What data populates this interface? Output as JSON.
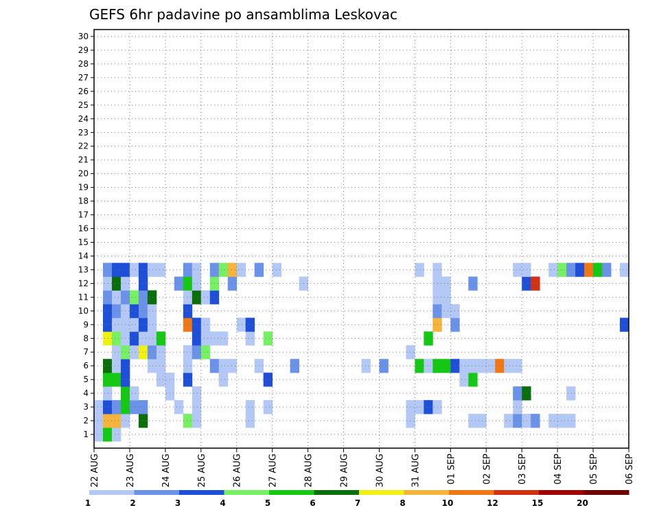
{
  "chart_data": {
    "type": "heatmap",
    "title": "GEFS 6hr padavine po ansamblima Leskovac",
    "ylim": [
      0,
      30
    ],
    "y_ticks": [
      "1",
      "2",
      "3",
      "4",
      "5",
      "6",
      "7",
      "8",
      "9",
      "10",
      "11",
      "12",
      "13",
      "14",
      "15",
      "16",
      "17",
      "18",
      "19",
      "20",
      "21",
      "22",
      "23",
      "24",
      "25",
      "26",
      "27",
      "28",
      "29",
      "30"
    ],
    "x_ticks": [
      "22 AUG",
      "23 AUG",
      "24 AUG",
      "25 AUG",
      "26 AUG",
      "27 AUG",
      "28 AUG",
      "29 AUG",
      "30 AUG",
      "31 AUG",
      "01 SEP",
      "02 SEP",
      "03 SEP",
      "04 SEP",
      "05 SEP",
      "06 SEP"
    ],
    "steps_per_day": 4,
    "n_steps": 60,
    "color_levels": [
      "1",
      "2",
      "3",
      "4",
      "5",
      "6",
      "7",
      "8",
      "10",
      "12",
      "15",
      "20"
    ],
    "color_palette": [
      "#b4c8f5",
      "#6a92e8",
      "#1e4fd8",
      "#78f064",
      "#14c814",
      "#0a6e0a",
      "#f0f014",
      "#f5b43c",
      "#f07814",
      "#d23214",
      "#a00000",
      "#6e0000"
    ],
    "grid": true,
    "cells": [
      [
        1,
        1,
        1
      ],
      [
        1,
        2,
        5
      ],
      [
        1,
        3,
        1
      ],
      [
        2,
        1,
        1
      ],
      [
        2,
        2,
        8
      ],
      [
        2,
        3,
        8
      ],
      [
        2,
        4,
        1
      ],
      [
        2,
        6,
        6
      ],
      [
        2,
        11,
        4
      ],
      [
        2,
        12,
        1
      ],
      [
        2,
        18,
        1
      ],
      [
        2,
        36,
        1
      ],
      [
        2,
        43,
        1
      ],
      [
        2,
        44,
        1
      ],
      [
        2,
        47,
        1
      ],
      [
        2,
        48,
        2
      ],
      [
        2,
        49,
        1
      ],
      [
        2,
        50,
        2
      ],
      [
        2,
        52,
        1
      ],
      [
        2,
        53,
        1
      ],
      [
        2,
        54,
        1
      ],
      [
        3,
        1,
        1
      ],
      [
        3,
        2,
        3
      ],
      [
        3,
        3,
        2
      ],
      [
        3,
        4,
        5
      ],
      [
        3,
        5,
        2
      ],
      [
        3,
        6,
        2
      ],
      [
        3,
        10,
        1
      ],
      [
        3,
        12,
        1
      ],
      [
        3,
        18,
        1
      ],
      [
        3,
        20,
        1
      ],
      [
        3,
        36,
        1
      ],
      [
        3,
        37,
        1
      ],
      [
        3,
        38,
        3
      ],
      [
        3,
        39,
        1
      ],
      [
        3,
        48,
        1
      ],
      [
        4,
        2,
        1
      ],
      [
        4,
        4,
        5
      ],
      [
        4,
        5,
        1
      ],
      [
        4,
        9,
        1
      ],
      [
        4,
        12,
        1
      ],
      [
        4,
        48,
        2
      ],
      [
        4,
        49,
        6
      ],
      [
        4,
        54,
        1
      ],
      [
        5,
        2,
        5
      ],
      [
        5,
        3,
        5
      ],
      [
        5,
        4,
        3
      ],
      [
        5,
        9,
        1
      ],
      [
        5,
        8,
        1
      ],
      [
        5,
        11,
        3
      ],
      [
        5,
        15,
        1
      ],
      [
        5,
        20,
        3
      ],
      [
        5,
        42,
        1
      ],
      [
        5,
        43,
        5
      ],
      [
        6,
        2,
        6
      ],
      [
        6,
        3,
        1
      ],
      [
        6,
        4,
        3
      ],
      [
        6,
        7,
        1
      ],
      [
        6,
        8,
        1
      ],
      [
        6,
        11,
        1
      ],
      [
        6,
        14,
        2
      ],
      [
        6,
        15,
        1
      ],
      [
        6,
        16,
        1
      ],
      [
        6,
        19,
        1
      ],
      [
        6,
        23,
        2
      ],
      [
        6,
        31,
        1
      ],
      [
        6,
        33,
        2
      ],
      [
        6,
        37,
        5
      ],
      [
        6,
        38,
        1
      ],
      [
        6,
        39,
        5
      ],
      [
        6,
        40,
        5
      ],
      [
        6,
        41,
        3
      ],
      [
        6,
        42,
        1
      ],
      [
        6,
        43,
        1
      ],
      [
        6,
        44,
        1
      ],
      [
        6,
        45,
        1
      ],
      [
        6,
        46,
        9
      ],
      [
        6,
        47,
        1
      ],
      [
        6,
        48,
        1
      ],
      [
        7,
        3,
        1
      ],
      [
        7,
        4,
        4
      ],
      [
        7,
        5,
        1
      ],
      [
        7,
        6,
        7
      ],
      [
        7,
        7,
        2
      ],
      [
        7,
        8,
        1
      ],
      [
        7,
        11,
        1
      ],
      [
        7,
        12,
        2
      ],
      [
        7,
        13,
        4
      ],
      [
        7,
        36,
        1
      ],
      [
        8,
        2,
        7
      ],
      [
        8,
        3,
        4
      ],
      [
        8,
        4,
        1
      ],
      [
        8,
        5,
        3
      ],
      [
        8,
        6,
        1
      ],
      [
        8,
        7,
        1
      ],
      [
        8,
        8,
        5
      ],
      [
        8,
        12,
        3
      ],
      [
        8,
        13,
        1
      ],
      [
        8,
        14,
        1
      ],
      [
        8,
        15,
        1
      ],
      [
        8,
        18,
        1
      ],
      [
        8,
        20,
        4
      ],
      [
        8,
        38,
        5
      ],
      [
        9,
        2,
        3
      ],
      [
        9,
        3,
        1
      ],
      [
        9,
        4,
        1
      ],
      [
        9,
        5,
        1
      ],
      [
        9,
        6,
        3
      ],
      [
        9,
        7,
        1
      ],
      [
        9,
        11,
        9
      ],
      [
        9,
        12,
        3
      ],
      [
        9,
        13,
        1
      ],
      [
        9,
        17,
        1
      ],
      [
        9,
        18,
        3
      ],
      [
        9,
        39,
        8
      ],
      [
        9,
        41,
        2
      ],
      [
        9,
        60,
        3
      ],
      [
        10,
        2,
        3
      ],
      [
        10,
        3,
        2
      ],
      [
        10,
        4,
        1
      ],
      [
        10,
        5,
        3
      ],
      [
        10,
        6,
        2
      ],
      [
        10,
        7,
        1
      ],
      [
        10,
        11,
        3
      ],
      [
        10,
        39,
        2
      ],
      [
        10,
        40,
        1
      ],
      [
        10,
        41,
        1
      ],
      [
        11,
        2,
        2
      ],
      [
        11,
        3,
        1
      ],
      [
        11,
        4,
        2
      ],
      [
        11,
        5,
        4
      ],
      [
        11,
        6,
        2
      ],
      [
        11,
        7,
        6
      ],
      [
        11,
        11,
        1
      ],
      [
        11,
        12,
        6
      ],
      [
        11,
        13,
        1
      ],
      [
        11,
        14,
        3
      ],
      [
        11,
        39,
        1
      ],
      [
        11,
        40,
        1
      ],
      [
        12,
        2,
        1
      ],
      [
        12,
        3,
        6
      ],
      [
        12,
        4,
        1
      ],
      [
        12,
        6,
        3
      ],
      [
        12,
        10,
        2
      ],
      [
        12,
        11,
        5
      ],
      [
        12,
        12,
        1
      ],
      [
        12,
        14,
        4
      ],
      [
        12,
        16,
        2
      ],
      [
        12,
        24,
        1
      ],
      [
        12,
        39,
        1
      ],
      [
        12,
        40,
        1
      ],
      [
        12,
        43,
        2
      ],
      [
        12,
        49,
        3
      ],
      [
        12,
        50,
        10
      ],
      [
        13,
        2,
        2
      ],
      [
        13,
        3,
        3
      ],
      [
        13,
        4,
        3
      ],
      [
        13,
        5,
        1
      ],
      [
        13,
        6,
        3
      ],
      [
        13,
        7,
        1
      ],
      [
        13,
        8,
        1
      ],
      [
        13,
        11,
        2
      ],
      [
        13,
        12,
        1
      ],
      [
        13,
        14,
        2
      ],
      [
        13,
        15,
        4
      ],
      [
        13,
        16,
        8
      ],
      [
        13,
        17,
        1
      ],
      [
        13,
        19,
        2
      ],
      [
        13,
        21,
        1
      ],
      [
        13,
        37,
        1
      ],
      [
        13,
        39,
        1
      ],
      [
        13,
        48,
        1
      ],
      [
        13,
        49,
        1
      ],
      [
        13,
        52,
        1
      ],
      [
        13,
        53,
        4
      ],
      [
        13,
        54,
        2
      ],
      [
        13,
        55,
        3
      ],
      [
        13,
        56,
        9
      ],
      [
        13,
        57,
        5
      ],
      [
        13,
        58,
        2
      ],
      [
        13,
        60,
        1
      ]
    ]
  }
}
